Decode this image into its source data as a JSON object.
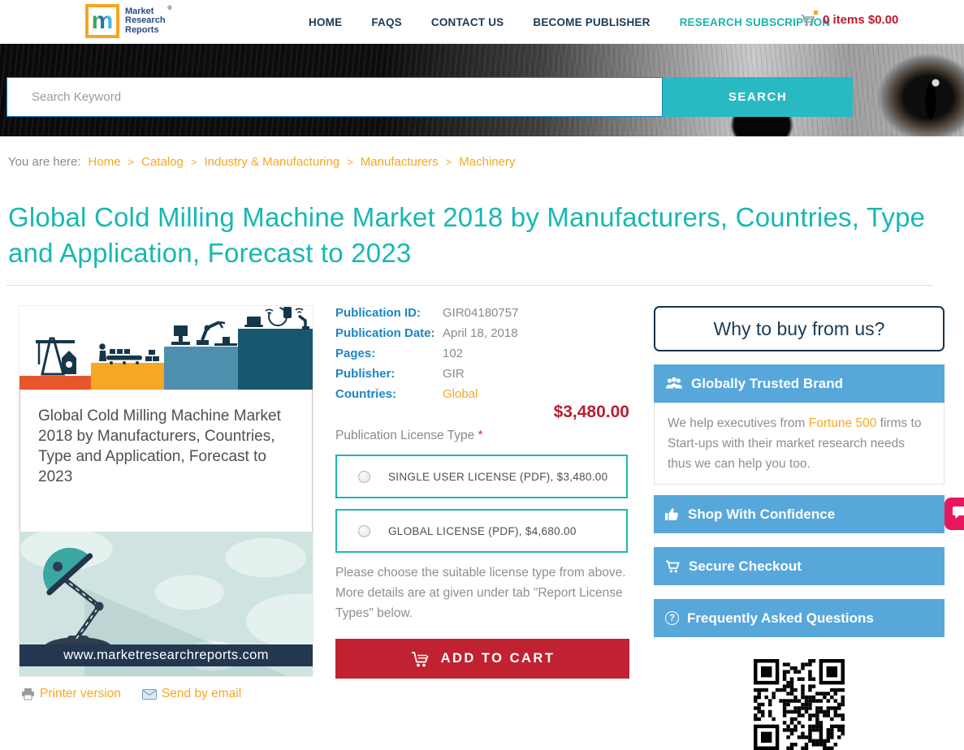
{
  "header": {
    "logo": {
      "m": "m",
      "lines": [
        "Market",
        "Research",
        "Reports"
      ],
      "registered": "®"
    },
    "nav": [
      {
        "label": "HOME"
      },
      {
        "label": "FAQS"
      },
      {
        "label": "CONTACT US"
      },
      {
        "label": "BECOME PUBLISHER"
      },
      {
        "label": "RESEARCH SUBSCRIPTION"
      }
    ],
    "cart_text": "0 items $0.00"
  },
  "hero": {
    "search_placeholder": "Search Keyword",
    "search_button": "SEARCH"
  },
  "breadcrumb": {
    "prefix": "You are here:",
    "separator": ">",
    "items": [
      "Home",
      "Catalog",
      "Industry & Manufacturing",
      "Manufacturers",
      "Machinery"
    ]
  },
  "page": {
    "title": "Global Cold Milling Machine Market 2018 by Manufacturers, Countries, Type and Application, Forecast to 2023"
  },
  "product": {
    "cover_title": "Global Cold Milling Machine Market 2018 by Manufacturers, Countries, Type and Application, Forecast to 2023",
    "cover_site": "www.marketresearchreports.com",
    "printer_link": "Printer version",
    "email_link": "Send by email"
  },
  "details": {
    "rows": [
      {
        "label": "Publication ID:",
        "value": "GIR04180757"
      },
      {
        "label": "Publication Date:",
        "value": "April 18, 2018"
      },
      {
        "label": "Pages:",
        "value": "102"
      },
      {
        "label": "Publisher:",
        "value": "GIR"
      },
      {
        "label": "Countries:",
        "value": "Global"
      }
    ],
    "price": "$3,480.00",
    "license_label": "Publication License Type",
    "required_mark": "*",
    "licenses": [
      "SINGLE USER LICENSE (PDF), $3,480.00",
      "GLOBAL LICENSE (PDF), $4,680.00"
    ],
    "note": "Please choose the suitable license type from above. More details are at given under tab \"Report License Types\" below.",
    "add_to_cart": "ADD TO CART"
  },
  "sidebar": {
    "why_title": "Why to buy from us?",
    "trusted_title": "Globally Trusted Brand",
    "trusted_before": "We help executives from ",
    "trusted_highlight": "Fortune 500",
    "trusted_after": " firms to Start-ups with their market research needs thus we can help you too.",
    "bars": [
      {
        "label": "Shop With Confidence"
      },
      {
        "label": "Secure Checkout"
      },
      {
        "label": "Frequently Asked Questions",
        "glyph": "?"
      }
    ]
  },
  "colors": {
    "teal_button": "#29b9c2",
    "title_teal": "#17b8b2",
    "orange_link": "#f7a823",
    "label_blue": "#1b85c4",
    "bar_blue": "#58a7db",
    "button_red": "#c02231",
    "price_red": "#b91f30",
    "navy": "#1d3a52",
    "cart_red": "#c3172c",
    "chat_pink": "#e8175d"
  }
}
